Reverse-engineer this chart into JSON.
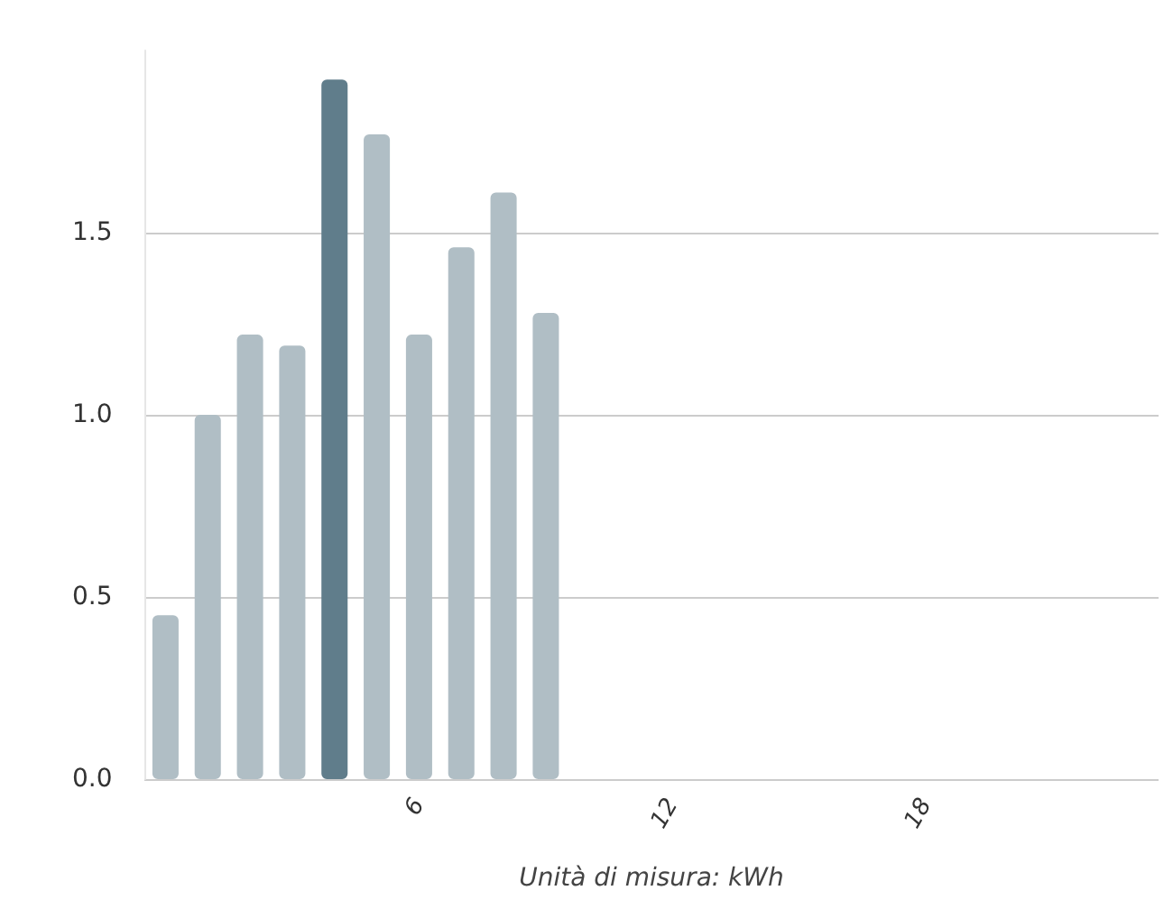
{
  "chart_data": {
    "type": "bar",
    "xlabel": "Unità di misura: kWh",
    "categories": [
      null,
      null,
      null,
      null,
      null,
      null,
      "6",
      null,
      null,
      null,
      null,
      null,
      "12",
      null,
      null,
      null,
      null,
      null,
      "18",
      null,
      null,
      null,
      null,
      null
    ],
    "values": [
      0.45,
      1.0,
      1.22,
      1.19,
      1.92,
      1.77,
      1.22,
      1.46,
      1.61,
      1.28,
      null,
      null,
      null,
      null,
      null,
      null,
      null,
      null,
      null,
      null,
      null,
      null,
      null,
      null
    ],
    "colors": [
      "#b0bec5",
      "#b0bec5",
      "#b0bec5",
      "#b0bec5",
      "#607d8b",
      "#b0bec5",
      "#b0bec5",
      "#b0bec5",
      "#b0bec5",
      "#b0bec5",
      "#b0bec5",
      "#b0bec5",
      "#b0bec5",
      "#b0bec5",
      "#b0bec5",
      "#b0bec5",
      "#b0bec5",
      "#b0bec5",
      "#b0bec5",
      "#b0bec5",
      "#b0bec5",
      "#b0bec5",
      "#b0bec5",
      "#b0bec5"
    ],
    "ylim": [
      0,
      2
    ],
    "yticks": [
      {
        "value": 0,
        "label": "0.0"
      },
      0.5,
      {
        "value": 1,
        "label": "1.0"
      },
      1.5
    ],
    "grid": "y"
  }
}
